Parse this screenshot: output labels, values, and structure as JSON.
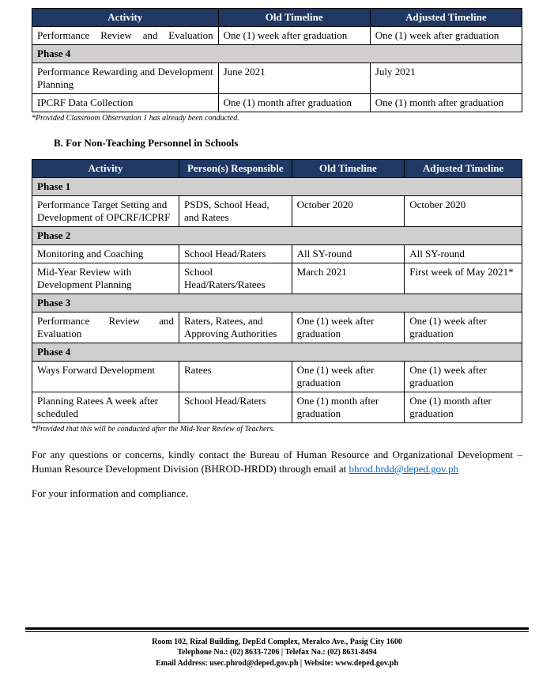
{
  "table1": {
    "headers": [
      "Activity",
      "Old Timeline",
      "Adjusted Timeline"
    ],
    "rows": [
      {
        "type": "data",
        "cells": [
          "Performance Review and Evaluation",
          "One (1) week after graduation",
          "One (1) week after graduation"
        ],
        "justify": true
      },
      {
        "type": "phase",
        "label": "Phase 4"
      },
      {
        "type": "data",
        "cells": [
          "Performance Rewarding and Development Planning",
          "June 2021",
          "July 2021"
        ],
        "justify": true
      },
      {
        "type": "data",
        "cells": [
          "IPCRF Data Collection",
          "One (1) month after graduation",
          "One (1) month after graduation"
        ]
      }
    ],
    "footnote": "*Provided Classroom Observation 1 has already been conducted."
  },
  "sectionB": "B.   For Non-Teaching Personnel in Schools",
  "table2": {
    "headers": [
      "Activity",
      "Person(s) Responsible",
      "Old Timeline",
      "Adjusted Timeline"
    ],
    "rows": [
      {
        "type": "phase",
        "label": "Phase 1"
      },
      {
        "type": "data",
        "cells": [
          "Performance Target Setting and Development of OPCRF/ICPRF",
          "PSDS, School Head, and Ratees",
          "October 2020",
          "October 2020"
        ]
      },
      {
        "type": "phase",
        "label": "Phase 2"
      },
      {
        "type": "data",
        "cells": [
          "Monitoring and Coaching",
          "School Head/Raters",
          "All SY-round",
          "All SY-round"
        ]
      },
      {
        "type": "data",
        "cells": [
          "Mid-Year Review with Development Planning",
          "School Head/Raters/Ratees",
          "March 2021",
          "First week of May 2021*"
        ]
      },
      {
        "type": "phase",
        "label": "Phase 3"
      },
      {
        "type": "data",
        "cells": [
          "Performance Review and Evaluation",
          "Raters, Ratees, and Approving Authorities",
          "One (1) week after graduation",
          "One (1) week after graduation"
        ],
        "justify": true
      },
      {
        "type": "phase",
        "label": "Phase 4"
      },
      {
        "type": "data",
        "cells": [
          "Ways Forward Development",
          "Ratees",
          "One (1) week after graduation",
          "One (1) week after graduation"
        ]
      },
      {
        "type": "data",
        "cells": [
          "Planning Ratees A week after scheduled",
          "School Head/Raters",
          "One (1) month after graduation",
          "One (1) month after graduation"
        ]
      }
    ],
    "footnote": "*Provided that this will be conducted after the Mid-Year Review of Teachers."
  },
  "para1_a": "For any questions or concerns, kindly contact the Bureau of Human Resource and Organizational Development – Human Resource Development Division (BHROD-HRDD) through email at ",
  "para1_link": "bhrod.hrdd@deped.gov.ph",
  "para2": "For your information and compliance.",
  "footer": {
    "line1": "Room 102, Rizal Building, DepEd  Complex, Meralco Ave., Pasig City 1600",
    "line2": "Telephone No.: (02) 8633-7206   |   Telefax No.: (02) 8631-8494",
    "line3": "Email Address: usec.phrod@deped.gov.ph  |  Website: www.deped.gov.ph"
  }
}
